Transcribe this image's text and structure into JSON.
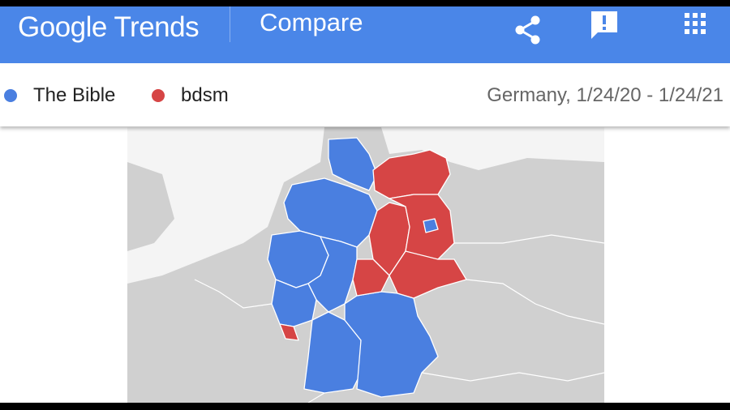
{
  "header": {
    "brand": "Google Trends",
    "title": "Compare"
  },
  "legend": {
    "items": [
      {
        "label": "The Bible",
        "color": "#4a7fe0"
      },
      {
        "label": "bdsm",
        "color": "#d64545"
      }
    ],
    "range": "Germany, 1/24/20 - 1/24/21"
  }
}
